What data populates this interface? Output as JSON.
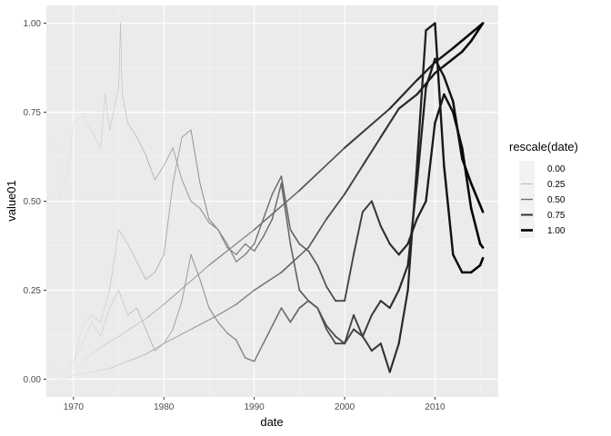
{
  "chart_data": {
    "type": "line",
    "xlabel": "date",
    "ylabel": "value01",
    "xlim": [
      1967.0,
      2017.0
    ],
    "ylim": [
      -0.05,
      1.05
    ],
    "x_ticks": [
      1970,
      1980,
      1990,
      2000,
      2010
    ],
    "x_tick_labels": [
      "1970",
      "1980",
      "1990",
      "2000",
      "2010"
    ],
    "y_ticks": [
      0,
      0.25,
      0.5,
      0.75,
      1.0
    ],
    "y_tick_labels": [
      "0.00",
      "0.25",
      "0.50",
      "0.75",
      "1.00"
    ],
    "grid": true,
    "legend": {
      "title": "rescale(date)",
      "position": "right",
      "entries": [
        {
          "label": "0.00",
          "value": 0.0
        },
        {
          "label": "0.25",
          "value": 0.25
        },
        {
          "label": "0.50",
          "value": 0.5
        },
        {
          "label": "0.75",
          "value": 0.75
        },
        {
          "label": "1.00",
          "value": 1.0
        }
      ]
    },
    "date_range": [
      1967.5,
      2015.3
    ],
    "series": [
      {
        "points": [
          [
            1967.5,
            0.03
          ],
          [
            1968,
            0.02
          ],
          [
            1968.5,
            0.01
          ],
          [
            1969,
            0.01
          ],
          [
            1969.5,
            0.02
          ],
          [
            1970,
            0.03
          ],
          [
            1971,
            0.05
          ],
          [
            1972,
            0.07
          ],
          [
            1973,
            0.09
          ],
          [
            1975,
            0.12
          ],
          [
            1978,
            0.17
          ],
          [
            1980,
            0.21
          ],
          [
            1985,
            0.32
          ],
          [
            1990,
            0.42
          ],
          [
            1995,
            0.53
          ],
          [
            2000,
            0.65
          ],
          [
            2005,
            0.76
          ],
          [
            2008,
            0.84
          ],
          [
            2010,
            0.89
          ],
          [
            2012,
            0.93
          ],
          [
            2015.3,
            1.0
          ]
        ]
      },
      {
        "points": [
          [
            1967.5,
            0.01
          ],
          [
            1968,
            0.0
          ],
          [
            1969,
            0.0
          ],
          [
            1970,
            0.01
          ],
          [
            1972,
            0.02
          ],
          [
            1974,
            0.03
          ],
          [
            1976,
            0.05
          ],
          [
            1978,
            0.07
          ],
          [
            1980,
            0.1
          ],
          [
            1983,
            0.14
          ],
          [
            1986,
            0.18
          ],
          [
            1988,
            0.21
          ],
          [
            1990,
            0.25
          ],
          [
            1993,
            0.3
          ],
          [
            1996,
            0.37
          ],
          [
            1998,
            0.45
          ],
          [
            2000,
            0.52
          ],
          [
            2002,
            0.6
          ],
          [
            2004,
            0.68
          ],
          [
            2006,
            0.76
          ],
          [
            2008,
            0.8
          ],
          [
            2009,
            0.83
          ],
          [
            2010,
            0.86
          ],
          [
            2011,
            0.88
          ],
          [
            2012,
            0.9
          ],
          [
            2013,
            0.92
          ],
          [
            2014,
            0.95
          ],
          [
            2015.3,
            1.0
          ]
        ]
      },
      {
        "points": [
          [
            1967.5,
            0.03
          ],
          [
            1968,
            0.02
          ],
          [
            1969,
            0.02
          ],
          [
            1970,
            0.05
          ],
          [
            1971,
            0.1
          ],
          [
            1972,
            0.16
          ],
          [
            1973,
            0.12
          ],
          [
            1974,
            0.2
          ],
          [
            1975,
            0.25
          ],
          [
            1976,
            0.18
          ],
          [
            1977,
            0.2
          ],
          [
            1978,
            0.14
          ],
          [
            1979,
            0.08
          ],
          [
            1980,
            0.1
          ],
          [
            1981,
            0.14
          ],
          [
            1982,
            0.22
          ],
          [
            1983,
            0.35
          ],
          [
            1984,
            0.28
          ],
          [
            1985,
            0.2
          ],
          [
            1986,
            0.16
          ],
          [
            1987,
            0.13
          ],
          [
            1988,
            0.11
          ],
          [
            1989,
            0.06
          ],
          [
            1990,
            0.05
          ],
          [
            1991,
            0.1
          ],
          [
            1992,
            0.15
          ],
          [
            1993,
            0.2
          ],
          [
            1994,
            0.16
          ],
          [
            1995,
            0.2
          ],
          [
            1996,
            0.22
          ],
          [
            1997,
            0.2
          ],
          [
            1998,
            0.15
          ],
          [
            1999,
            0.12
          ],
          [
            2000,
            0.1
          ],
          [
            2001,
            0.14
          ],
          [
            2002,
            0.12
          ],
          [
            2003,
            0.18
          ],
          [
            2004,
            0.22
          ],
          [
            2005,
            0.2
          ],
          [
            2006,
            0.25
          ],
          [
            2007,
            0.32
          ],
          [
            2008,
            0.55
          ],
          [
            2009,
            0.82
          ],
          [
            2010,
            0.9
          ],
          [
            2011,
            0.85
          ],
          [
            2012,
            0.78
          ],
          [
            2013,
            0.62
          ],
          [
            2014,
            0.55
          ],
          [
            2015.3,
            0.47
          ]
        ]
      },
      {
        "points": [
          [
            1967.5,
            0.03
          ],
          [
            1968,
            0.03
          ],
          [
            1969,
            0.02
          ],
          [
            1970,
            0.04
          ],
          [
            1970.5,
            0.1
          ],
          [
            1971,
            0.15
          ],
          [
            1972,
            0.18
          ],
          [
            1973,
            0.16
          ],
          [
            1974,
            0.25
          ],
          [
            1975,
            0.42
          ],
          [
            1976,
            0.38
          ],
          [
            1977,
            0.33
          ],
          [
            1978,
            0.28
          ],
          [
            1979,
            0.3
          ],
          [
            1980,
            0.35
          ],
          [
            1981,
            0.55
          ],
          [
            1982,
            0.68
          ],
          [
            1983,
            0.7
          ],
          [
            1984,
            0.55
          ],
          [
            1985,
            0.45
          ],
          [
            1986,
            0.42
          ],
          [
            1987,
            0.38
          ],
          [
            1988,
            0.33
          ],
          [
            1989,
            0.35
          ],
          [
            1990,
            0.38
          ],
          [
            1991,
            0.45
          ],
          [
            1992,
            0.52
          ],
          [
            1993,
            0.57
          ],
          [
            1994,
            0.42
          ],
          [
            1995,
            0.38
          ],
          [
            1996,
            0.36
          ],
          [
            1997,
            0.32
          ],
          [
            1998,
            0.26
          ],
          [
            1999,
            0.22
          ],
          [
            2000,
            0.22
          ],
          [
            2001,
            0.35
          ],
          [
            2002,
            0.47
          ],
          [
            2003,
            0.5
          ],
          [
            2004,
            0.43
          ],
          [
            2005,
            0.38
          ],
          [
            2006,
            0.35
          ],
          [
            2007,
            0.38
          ],
          [
            2008,
            0.45
          ],
          [
            2009,
            0.5
          ],
          [
            2010,
            0.72
          ],
          [
            2011,
            0.8
          ],
          [
            2012,
            0.75
          ],
          [
            2013,
            0.65
          ],
          [
            2014,
            0.48
          ],
          [
            2015,
            0.38
          ],
          [
            2015.3,
            0.37
          ]
        ]
      },
      {
        "points": [
          [
            1967.5,
            0.68
          ],
          [
            1968,
            0.65
          ],
          [
            1968.5,
            0.5
          ],
          [
            1969,
            0.55
          ],
          [
            1969.5,
            0.6
          ],
          [
            1970,
            0.72
          ],
          [
            1971,
            0.74
          ],
          [
            1972,
            0.7
          ],
          [
            1973,
            0.65
          ],
          [
            1973.5,
            0.8
          ],
          [
            1974,
            0.7
          ],
          [
            1975,
            0.82
          ],
          [
            1975.2,
            1.0
          ],
          [
            1975.4,
            0.8
          ],
          [
            1976,
            0.72
          ],
          [
            1977,
            0.68
          ],
          [
            1978,
            0.63
          ],
          [
            1979,
            0.56
          ],
          [
            1980,
            0.6
          ],
          [
            1981,
            0.65
          ],
          [
            1982,
            0.56
          ],
          [
            1983,
            0.5
          ],
          [
            1984,
            0.48
          ],
          [
            1985,
            0.44
          ],
          [
            1986,
            0.42
          ],
          [
            1987,
            0.37
          ],
          [
            1988,
            0.35
          ],
          [
            1989,
            0.38
          ],
          [
            1990,
            0.36
          ],
          [
            1991,
            0.4
          ],
          [
            1992,
            0.45
          ],
          [
            1993,
            0.55
          ],
          [
            1994,
            0.38
          ],
          [
            1995,
            0.25
          ],
          [
            1996,
            0.22
          ],
          [
            1997,
            0.2
          ],
          [
            1998,
            0.14
          ],
          [
            1999,
            0.1
          ],
          [
            2000,
            0.1
          ],
          [
            2001,
            0.18
          ],
          [
            2002,
            0.12
          ],
          [
            2003,
            0.08
          ],
          [
            2004,
            0.1
          ],
          [
            2005,
            0.02
          ],
          [
            2006,
            0.1
          ],
          [
            2007,
            0.25
          ],
          [
            2008,
            0.6
          ],
          [
            2009,
            0.98
          ],
          [
            2010,
            1.0
          ],
          [
            2011,
            0.6
          ],
          [
            2012,
            0.35
          ],
          [
            2013,
            0.3
          ],
          [
            2014,
            0.3
          ],
          [
            2015,
            0.32
          ],
          [
            2015.3,
            0.34
          ]
        ]
      }
    ]
  }
}
